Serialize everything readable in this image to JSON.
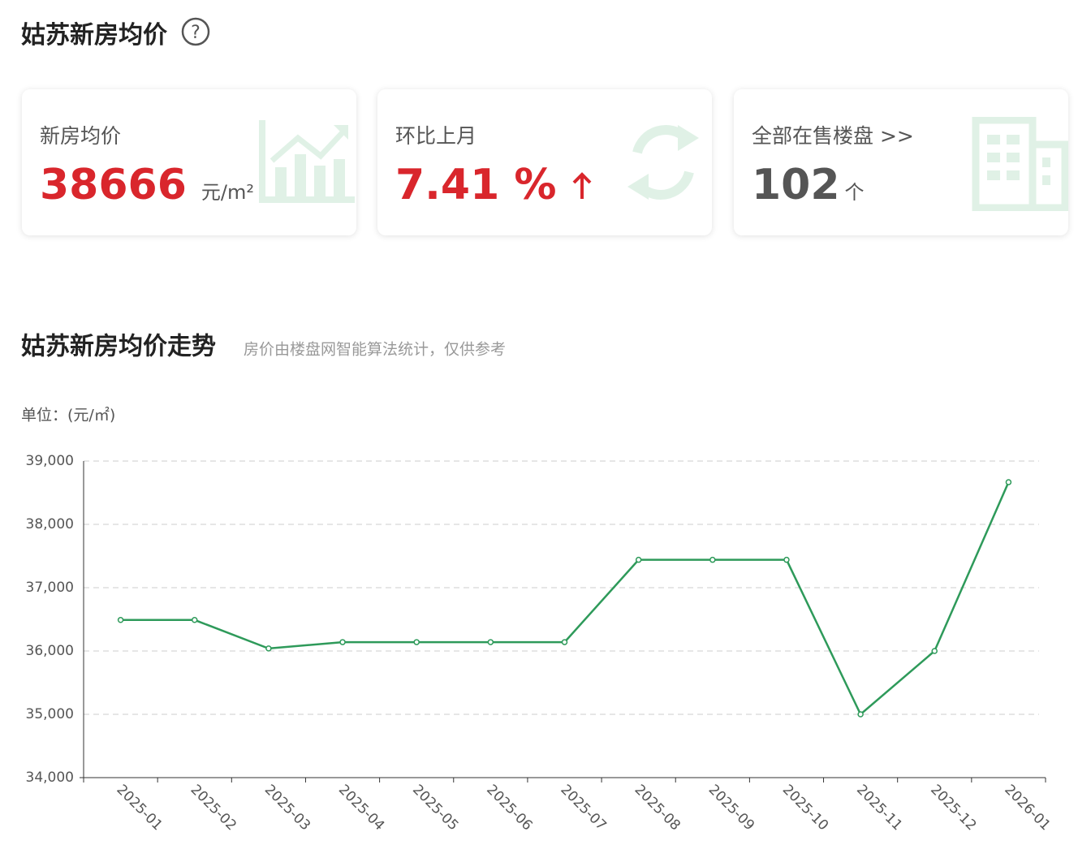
{
  "header": {
    "title": "姑苏新房均价"
  },
  "cards": [
    {
      "label": "新房均价",
      "value": "38666",
      "unit": "元/m²"
    },
    {
      "label": "环比上月",
      "value": "7.41 %"
    },
    {
      "label": "全部在售楼盘 >>",
      "value": "102",
      "unit": "个"
    }
  ],
  "chart_data": {
    "type": "line",
    "title": "姑苏新房均价走势",
    "subtitle": "房价由楼盘网智能算法统计，仅供参考",
    "unit_label": "单位：(元/㎡)",
    "categories": [
      "2025-01",
      "2025-02",
      "2025-03",
      "2025-04",
      "2025-05",
      "2025-06",
      "2025-07",
      "2025-08",
      "2025-09",
      "2025-10",
      "2025-11",
      "2025-12",
      "2026-01"
    ],
    "values": [
      36490,
      36490,
      36040,
      36140,
      36140,
      36140,
      36140,
      37440,
      37440,
      37440,
      35000,
      36000,
      38666
    ],
    "color": "#2e9a5a",
    "ylim": [
      34000,
      39000
    ],
    "yticks": [
      {
        "value": 34000,
        "label": "34,000"
      },
      {
        "value": 35000,
        "label": "35,000"
      },
      {
        "value": 36000,
        "label": "36,000"
      },
      {
        "value": 37000,
        "label": "37,000"
      },
      {
        "value": 38000,
        "label": "38,000"
      },
      {
        "value": 39000,
        "label": "39,000"
      }
    ],
    "grid": true
  }
}
